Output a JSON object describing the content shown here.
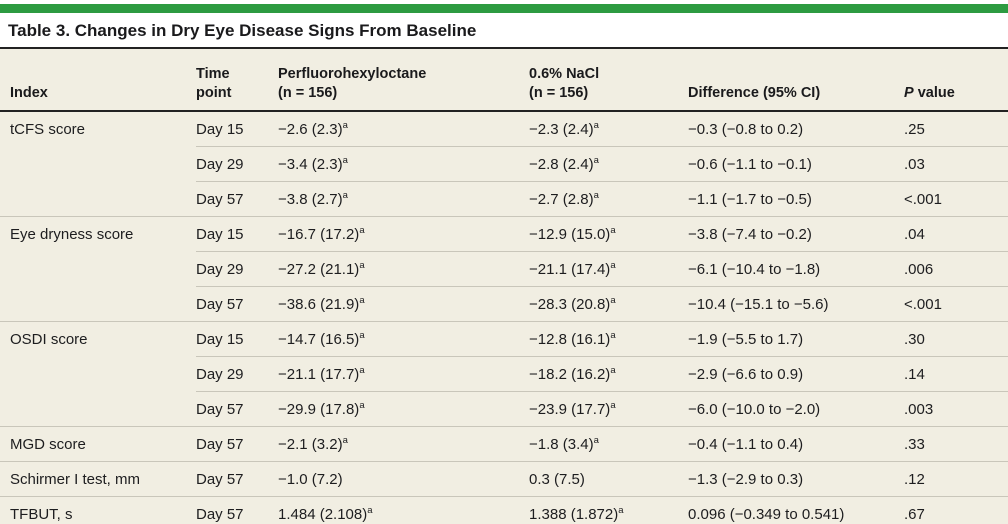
{
  "accent_color": "#2d9b41",
  "background_color": "#f1eee2",
  "title": "Table 3. Changes in Dry Eye Disease Signs From Baseline",
  "table": {
    "columns": {
      "index": "Index",
      "time_line1": "Time",
      "time_line2": "point",
      "pfho_line1": "Perfluorohexyloctane",
      "pfho_line2": "(n = 156)",
      "nacl_line1": "0.6% NaCl",
      "nacl_line2": "(n = 156)",
      "difference": "Difference (95% CI)",
      "p_italic": "P",
      "p_rest": " value"
    },
    "rows": [
      {
        "index": "tCFS score",
        "time": "Day 15",
        "pfho": "−2.6 (2.3)",
        "pfho_sup": "a",
        "nacl": "−2.3 (2.4)",
        "nacl_sup": "a",
        "diff": "−0.3 (−0.8 to 0.2)",
        "p": ".25",
        "group_start": true
      },
      {
        "index": "",
        "time": "Day 29",
        "pfho": "−3.4 (2.3)",
        "pfho_sup": "a",
        "nacl": "−2.8 (2.4)",
        "nacl_sup": "a",
        "diff": "−0.6 (−1.1 to −0.1)",
        "p": ".03",
        "group_start": false
      },
      {
        "index": "",
        "time": "Day 57",
        "pfho": "−3.8 (2.7)",
        "pfho_sup": "a",
        "nacl": "−2.7 (2.8)",
        "nacl_sup": "a",
        "diff": "−1.1 (−1.7 to −0.5)",
        "p": "<.001",
        "group_start": false
      },
      {
        "index": "Eye dryness score",
        "time": "Day 15",
        "pfho": "−16.7 (17.2)",
        "pfho_sup": "a",
        "nacl": "−12.9 (15.0)",
        "nacl_sup": "a",
        "diff": "−3.8 (−7.4 to −0.2)",
        "p": ".04",
        "group_start": true
      },
      {
        "index": "",
        "time": "Day 29",
        "pfho": "−27.2 (21.1)",
        "pfho_sup": "a",
        "nacl": "−21.1 (17.4)",
        "nacl_sup": "a",
        "diff": "−6.1 (−10.4 to −1.8)",
        "p": ".006",
        "group_start": false
      },
      {
        "index": "",
        "time": "Day 57",
        "pfho": "−38.6 (21.9)",
        "pfho_sup": "a",
        "nacl": "−28.3 (20.8)",
        "nacl_sup": "a",
        "diff": "−10.4 (−15.1 to −5.6)",
        "p": "<.001",
        "group_start": false
      },
      {
        "index": "OSDI score",
        "time": "Day 15",
        "pfho": "−14.7 (16.5)",
        "pfho_sup": "a",
        "nacl": "−12.8 (16.1)",
        "nacl_sup": "a",
        "diff": "−1.9 (−5.5 to 1.7)",
        "p": ".30",
        "group_start": true
      },
      {
        "index": "",
        "time": "Day 29",
        "pfho": "−21.1 (17.7)",
        "pfho_sup": "a",
        "nacl": "−18.2 (16.2)",
        "nacl_sup": "a",
        "diff": "−2.9 (−6.6 to 0.9)",
        "p": ".14",
        "group_start": false
      },
      {
        "index": "",
        "time": "Day 57",
        "pfho": "−29.9 (17.8)",
        "pfho_sup": "a",
        "nacl": "−23.9 (17.7)",
        "nacl_sup": "a",
        "diff": "−6.0 (−10.0 to −2.0)",
        "p": ".003",
        "group_start": false
      },
      {
        "index": "MGD score",
        "time": "Day 57",
        "pfho": "−2.1 (3.2)",
        "pfho_sup": "a",
        "nacl": "−1.8 (3.4)",
        "nacl_sup": "a",
        "diff": "−0.4 (−1.1 to 0.4)",
        "p": ".33",
        "group_start": true
      },
      {
        "index": "Schirmer I test, mm",
        "time": "Day 57",
        "pfho": "−1.0 (7.2)",
        "pfho_sup": "",
        "nacl": "0.3 (7.5)",
        "nacl_sup": "",
        "diff": "−1.3 (−2.9 to 0.3)",
        "p": ".12",
        "group_start": true
      },
      {
        "index": "TFBUT, s",
        "time": "Day 57",
        "pfho": "1.484 (2.108)",
        "pfho_sup": "a",
        "nacl": "1.388 (1.872)",
        "nacl_sup": "a",
        "diff": "0.096 (−0.349 to 0.541)",
        "p": ".67",
        "group_start": true
      }
    ]
  }
}
